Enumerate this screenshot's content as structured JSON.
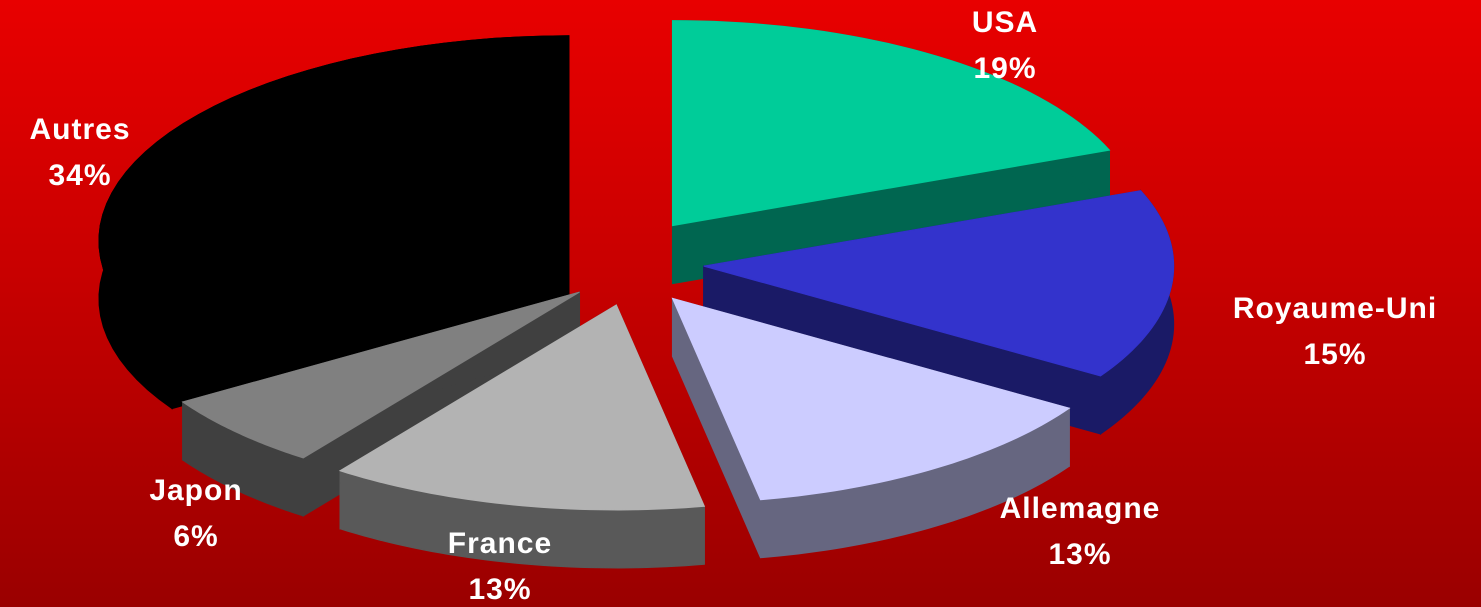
{
  "chart_data": {
    "type": "pie",
    "title": "",
    "style": "3d-exploded",
    "slices": [
      {
        "label": "USA",
        "value": 19,
        "value_label": "19%",
        "color": "#00cc99",
        "side_color": "#006650"
      },
      {
        "label": "Royaume-Uni",
        "value": 15,
        "value_label": "15%",
        "color": "#3333cc",
        "side_color": "#1a1a66"
      },
      {
        "label": "Allemagne",
        "value": 13,
        "value_label": "13%",
        "color": "#ccccff",
        "side_color": "#666680"
      },
      {
        "label": "France",
        "value": 13,
        "value_label": "13%",
        "color": "#b3b3b3",
        "side_color": "#595959"
      },
      {
        "label": "Japon",
        "value": 6,
        "value_label": "6%",
        "color": "#808080",
        "side_color": "#404040"
      },
      {
        "label": "Autres",
        "value": 34,
        "value_label": "34%",
        "color": "#000000",
        "side_color": "#000000"
      }
    ]
  }
}
